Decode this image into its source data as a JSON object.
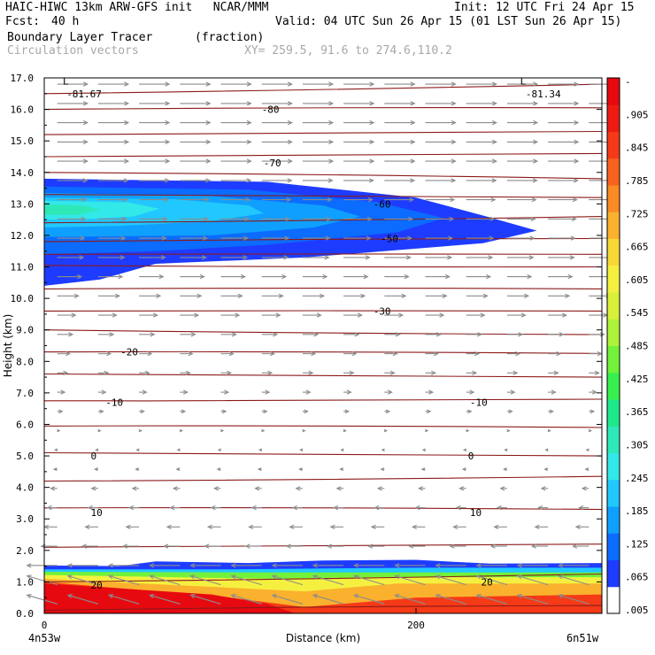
{
  "header": {
    "title_left": "HAIC-HIWC 13km ARW-GFS init   NCAR/MMM",
    "init": "Init: 12 UTC Fri 24 Apr 15",
    "fcst_label": "Fcst:",
    "fcst_value": "40 h",
    "valid": "Valid: 04 UTC Sun 26 Apr 15 (01 LST Sun 26 Apr 15)",
    "field": "Boundary Layer Tracer",
    "units": "(fraction)",
    "vectors": "Circulation vectors",
    "xy": "XY= 259.5, 91.6 to 274.6,110.2"
  },
  "colors": {
    "contour": "#8b1a1a",
    "vector": "#8c8c8c",
    "scale": [
      "#ffffff",
      "#1e3cff",
      "#0b6cff",
      "#0fa0ff",
      "#21c8ff",
      "#33e8e8",
      "#2ee8b8",
      "#1ee88a",
      "#38ef4e",
      "#72f23a",
      "#aef23a",
      "#d8f03a",
      "#f5f040",
      "#f8d838",
      "#fab12e",
      "#fa8a25",
      "#f8621d",
      "#f53a17",
      "#ee1b13",
      "#e60a10"
    ]
  },
  "chart_data": {
    "type": "cross-section",
    "xlabel": "Distance (km)",
    "ylabel": "Height (km)",
    "xlim": [
      0,
      300
    ],
    "ylim": [
      0,
      17
    ],
    "x_ticks": [
      "0",
      "200"
    ],
    "y_ticks": [
      "0.0",
      "1.0",
      "2.0",
      "3.0",
      "4.0",
      "5.0",
      "6.0",
      "7.0",
      "8.0",
      "9.0",
      "10.0",
      "11.0",
      "12.0",
      "13.0",
      "14.0",
      "15.0",
      "16.0",
      "17.0"
    ],
    "endpoint_left": "4n53w",
    "endpoint_right": "6n51w",
    "colorbar_labels": [
      "-",
      ".905",
      ".845",
      ".785",
      ".725",
      ".665",
      ".605",
      ".545",
      ".485",
      ".425",
      ".365",
      ".305",
      ".245",
      ".185",
      ".125",
      ".065",
      ".005"
    ],
    "contour_labels": [
      {
        "text": "L",
        "x": 10,
        "y": 16.9
      },
      {
        "text": "-81.67",
        "x": 12,
        "y": 16.5
      },
      {
        "text": "L",
        "x": 256,
        "y": 16.9
      },
      {
        "text": "-81.34",
        "x": 259,
        "y": 16.5
      },
      {
        "text": "-80",
        "x": 117,
        "y": 16.0
      },
      {
        "text": "-70",
        "x": 118,
        "y": 14.3
      },
      {
        "text": "-60",
        "x": 177,
        "y": 13.0
      },
      {
        "text": "-50",
        "x": 181,
        "y": 11.9
      },
      {
        "text": "-30",
        "x": 177,
        "y": 9.6
      },
      {
        "text": "-20",
        "x": 41,
        "y": 8.3
      },
      {
        "text": "-10",
        "x": 33,
        "y": 6.7
      },
      {
        "text": "-10",
        "x": 229,
        "y": 6.7
      },
      {
        "text": "0",
        "x": 25,
        "y": 5.0
      },
      {
        "text": "0",
        "x": 228,
        "y": 5.0
      },
      {
        "text": "10",
        "x": 25,
        "y": 3.2
      },
      {
        "text": "10",
        "x": 229,
        "y": 3.2
      },
      {
        "text": "20",
        "x": 25,
        "y": 0.9
      },
      {
        "text": "20",
        "x": 235,
        "y": 1.0
      }
    ],
    "isotherms_left_km": [
      0.1,
      1.0,
      2.1,
      3.35,
      4.2,
      5.1,
      5.95,
      6.75,
      7.6,
      8.3,
      9.0,
      9.6,
      10.3,
      11.05,
      11.4,
      11.8,
      12.4,
      13.3,
      14.0,
      14.5,
      15.2,
      16.0,
      16.5
    ],
    "isotherms_right_km": [
      0.25,
      1.25,
      2.2,
      3.3,
      4.35,
      5.0,
      5.9,
      6.8,
      7.5,
      8.25,
      8.85,
      9.6,
      10.3,
      11.0,
      11.4,
      11.9,
      12.6,
      13.2,
      13.8,
      14.6,
      15.3,
      16.05,
      16.8
    ],
    "tracer_layers": [
      {
        "region": "upper-plume",
        "bottom_km": 10.4,
        "top_km": 13.8,
        "x_max_km": 265,
        "peak_fraction": 0.4
      },
      {
        "region": "boundary-layer",
        "bottom_km": 0.0,
        "top_km": 1.6,
        "x_max_km": 300,
        "peak_fraction": 0.995
      }
    ]
  }
}
